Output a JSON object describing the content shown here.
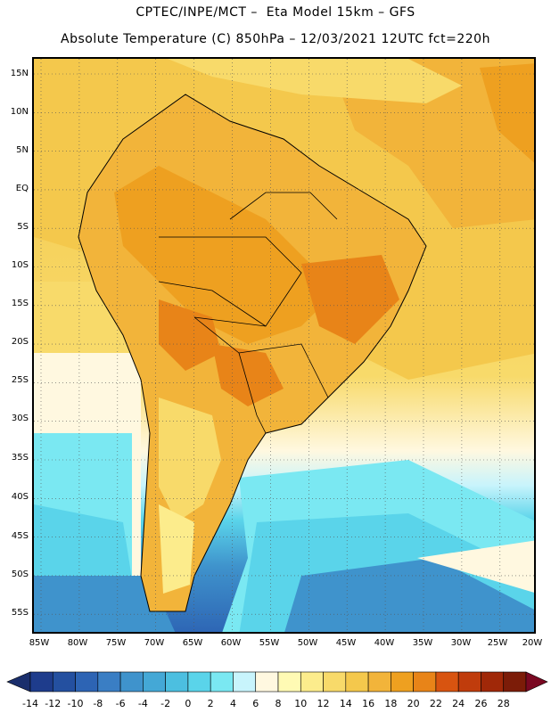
{
  "title": {
    "line1": "CPTEC/INPE/MCT –  Eta Model 15km – GFS",
    "line2": "Absolute Temperature (C) 850hPa – 12/03/2021 12UTC fct=220h"
  },
  "map": {
    "lat_labels": [
      "15N",
      "10N",
      "5N",
      "EQ",
      "5S",
      "10S",
      "15S",
      "20S",
      "25S",
      "30S",
      "35S",
      "40S",
      "45S",
      "50S",
      "55S"
    ],
    "lon_labels": [
      "85W",
      "80W",
      "75W",
      "70W",
      "65W",
      "60W",
      "55W",
      "50W",
      "45W",
      "40W",
      "35W",
      "30W",
      "25W",
      "20W"
    ]
  },
  "colorbar": {
    "labels": [
      "-14",
      "-12",
      "-10",
      "-8",
      "-6",
      "-4",
      "-2",
      "0",
      "2",
      "4",
      "6",
      "8",
      "10",
      "12",
      "14",
      "16",
      "18",
      "20",
      "22",
      "24",
      "26",
      "28"
    ],
    "colors": [
      "#1e3c8c",
      "#2450a0",
      "#2d64b4",
      "#3a7ec4",
      "#3f93cc",
      "#44a8d6",
      "#4cbfe0",
      "#5ad4ea",
      "#7ae8f2",
      "#c8f4fc",
      "#fff8e0",
      "#fffab4",
      "#fcec8c",
      "#f8da6a",
      "#f4c84c",
      "#f2b43a",
      "#eea020",
      "#e88418",
      "#d85410",
      "#c03c0c",
      "#a02808",
      "#7c1c08"
    ],
    "end_low_color": "#1a2e6c",
    "end_high_color": "#7a0822"
  }
}
